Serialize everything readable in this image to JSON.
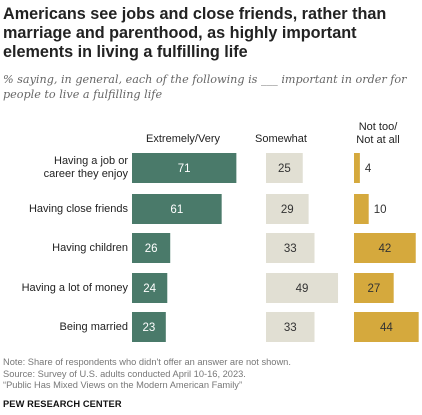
{
  "title": "Americans see jobs and close friends, rather than marriage and parenthood, as highly important elements in living a fulfilling life",
  "subtitle": "% saying, in general, each of the following is ___ important in order for people to live a fulfilling life",
  "chart_data": {
    "type": "bar",
    "title": "Americans see jobs and close friends, rather than marriage and parenthood, as highly important elements in living a fulfilling life",
    "categories": [
      "Having a job or career they enjoy",
      "Having close friends",
      "Having children",
      "Having a lot of money",
      "Being married"
    ],
    "category_lines": [
      [
        "Having a job or",
        "career they enjoy"
      ],
      [
        "Having close friends"
      ],
      [
        "Having children"
      ],
      [
        "Having a lot of money"
      ],
      [
        "Being married"
      ]
    ],
    "series": [
      {
        "name": "Extremely/Very",
        "values": [
          71,
          61,
          26,
          24,
          23
        ],
        "color": "#4a7a6a",
        "label_color": "#ffffff"
      },
      {
        "name": "Somewhat",
        "values": [
          25,
          29,
          33,
          49,
          33
        ],
        "color": "#e1dfd3",
        "label_color": "#333333"
      },
      {
        "name": "Not too/ Not at all",
        "values": [
          4,
          10,
          42,
          27,
          44
        ],
        "color": "#d5a93d",
        "label_color": "#333333"
      }
    ],
    "column_headers": [
      [
        "Extremely/Very"
      ],
      [
        "Somewhat"
      ],
      [
        "Not too/",
        "Not at all"
      ]
    ],
    "xlabel": "",
    "ylabel": "",
    "grid": false,
    "legend": "column headers above bars"
  },
  "footer": {
    "note_lines": [
      "Note: Share of respondents who didn't offer an answer are not shown.",
      "Source: Survey of U.S. adults conducted April 10-16, 2023.",
      "“Public Has Mixed Views on the Modern American Family”"
    ],
    "brand": "PEW RESEARCH CENTER"
  }
}
